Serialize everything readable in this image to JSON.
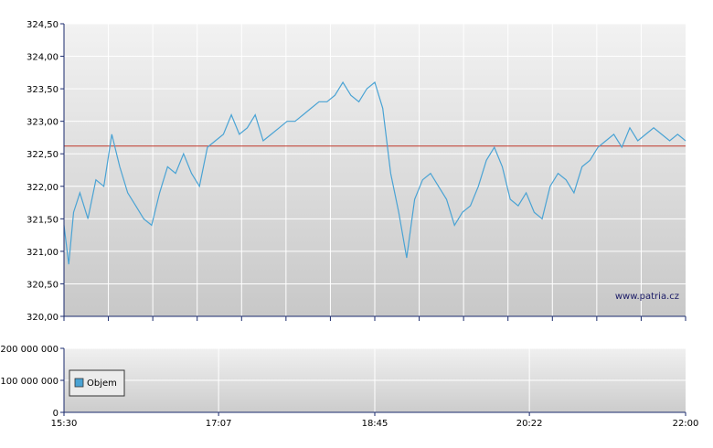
{
  "chart_data": [
    {
      "type": "line",
      "panel": "price",
      "title": "",
      "xlabel": "",
      "ylabel": "",
      "ylim": [
        320.0,
        324.5
      ],
      "y_ticks": [
        "320,00",
        "320,50",
        "321,00",
        "321,50",
        "322,00",
        "322,50",
        "323,00",
        "323,50",
        "324,00",
        "324,50"
      ],
      "y_tick_values": [
        320.0,
        320.5,
        321.0,
        321.5,
        322.0,
        322.5,
        323.0,
        323.5,
        324.0,
        324.5
      ],
      "reference_line": 322.62,
      "grid": true,
      "watermark": "www.patria.cz",
      "series": [
        {
          "color": "#4aa3d4",
          "x": [
            "15:30",
            "15:33",
            "15:36",
            "15:40",
            "15:45",
            "15:50",
            "15:55",
            "16:00",
            "16:05",
            "16:10",
            "16:15",
            "16:20",
            "16:25",
            "16:30",
            "16:35",
            "16:40",
            "16:45",
            "16:50",
            "16:55",
            "17:00",
            "17:05",
            "17:10",
            "17:15",
            "17:20",
            "17:25",
            "17:30",
            "17:35",
            "17:40",
            "17:45",
            "17:50",
            "17:55",
            "18:00",
            "18:05",
            "18:10",
            "18:15",
            "18:20",
            "18:25",
            "18:30",
            "18:35",
            "18:40",
            "18:45",
            "18:50",
            "18:55",
            "19:00",
            "19:05",
            "19:10",
            "19:15",
            "19:20",
            "19:25",
            "19:30",
            "19:35",
            "19:40",
            "19:45",
            "19:50",
            "19:55",
            "20:00",
            "20:05",
            "20:10",
            "20:15",
            "20:20",
            "20:25",
            "20:30",
            "20:35",
            "20:40",
            "20:45",
            "20:50",
            "20:55",
            "21:00",
            "21:05",
            "21:10",
            "21:15",
            "21:20",
            "21:25",
            "21:30",
            "21:35",
            "21:40",
            "21:45",
            "21:50",
            "21:55",
            "22:00"
          ],
          "values": [
            321.4,
            320.8,
            321.6,
            321.9,
            321.5,
            322.1,
            322.0,
            322.8,
            322.3,
            321.9,
            321.7,
            321.5,
            321.4,
            321.9,
            322.3,
            322.2,
            322.5,
            322.2,
            322.0,
            322.6,
            322.7,
            322.8,
            323.1,
            322.8,
            322.9,
            323.1,
            322.7,
            322.8,
            322.9,
            323.0,
            323.0,
            323.1,
            323.2,
            323.3,
            323.3,
            323.4,
            323.6,
            323.4,
            323.3,
            323.5,
            323.6,
            323.2,
            322.2,
            321.6,
            320.9,
            321.8,
            322.1,
            322.2,
            322.0,
            321.8,
            321.4,
            321.6,
            321.7,
            322.0,
            322.4,
            322.6,
            322.3,
            321.8,
            321.7,
            321.9,
            321.6,
            321.5,
            322.0,
            322.2,
            322.1,
            321.9,
            322.3,
            322.4,
            322.6,
            322.7,
            322.8,
            322.6,
            322.9,
            322.7,
            322.8,
            322.9,
            322.8,
            322.7,
            322.8,
            322.7
          ]
        }
      ]
    },
    {
      "type": "bar",
      "panel": "volume",
      "title": "",
      "ylim": [
        0,
        200000000
      ],
      "y_ticks": [
        "0",
        "100 000 000",
        "200 000 000"
      ],
      "y_tick_values": [
        0,
        100000000,
        200000000
      ],
      "x_ticks": [
        "15:30",
        "17:07",
        "18:45",
        "20:22",
        "22:00"
      ],
      "legend": [
        "Objem"
      ],
      "legend_position": "left",
      "series": [
        {
          "name": "Objem",
          "color": "#4aa3d4",
          "values": []
        }
      ]
    }
  ]
}
